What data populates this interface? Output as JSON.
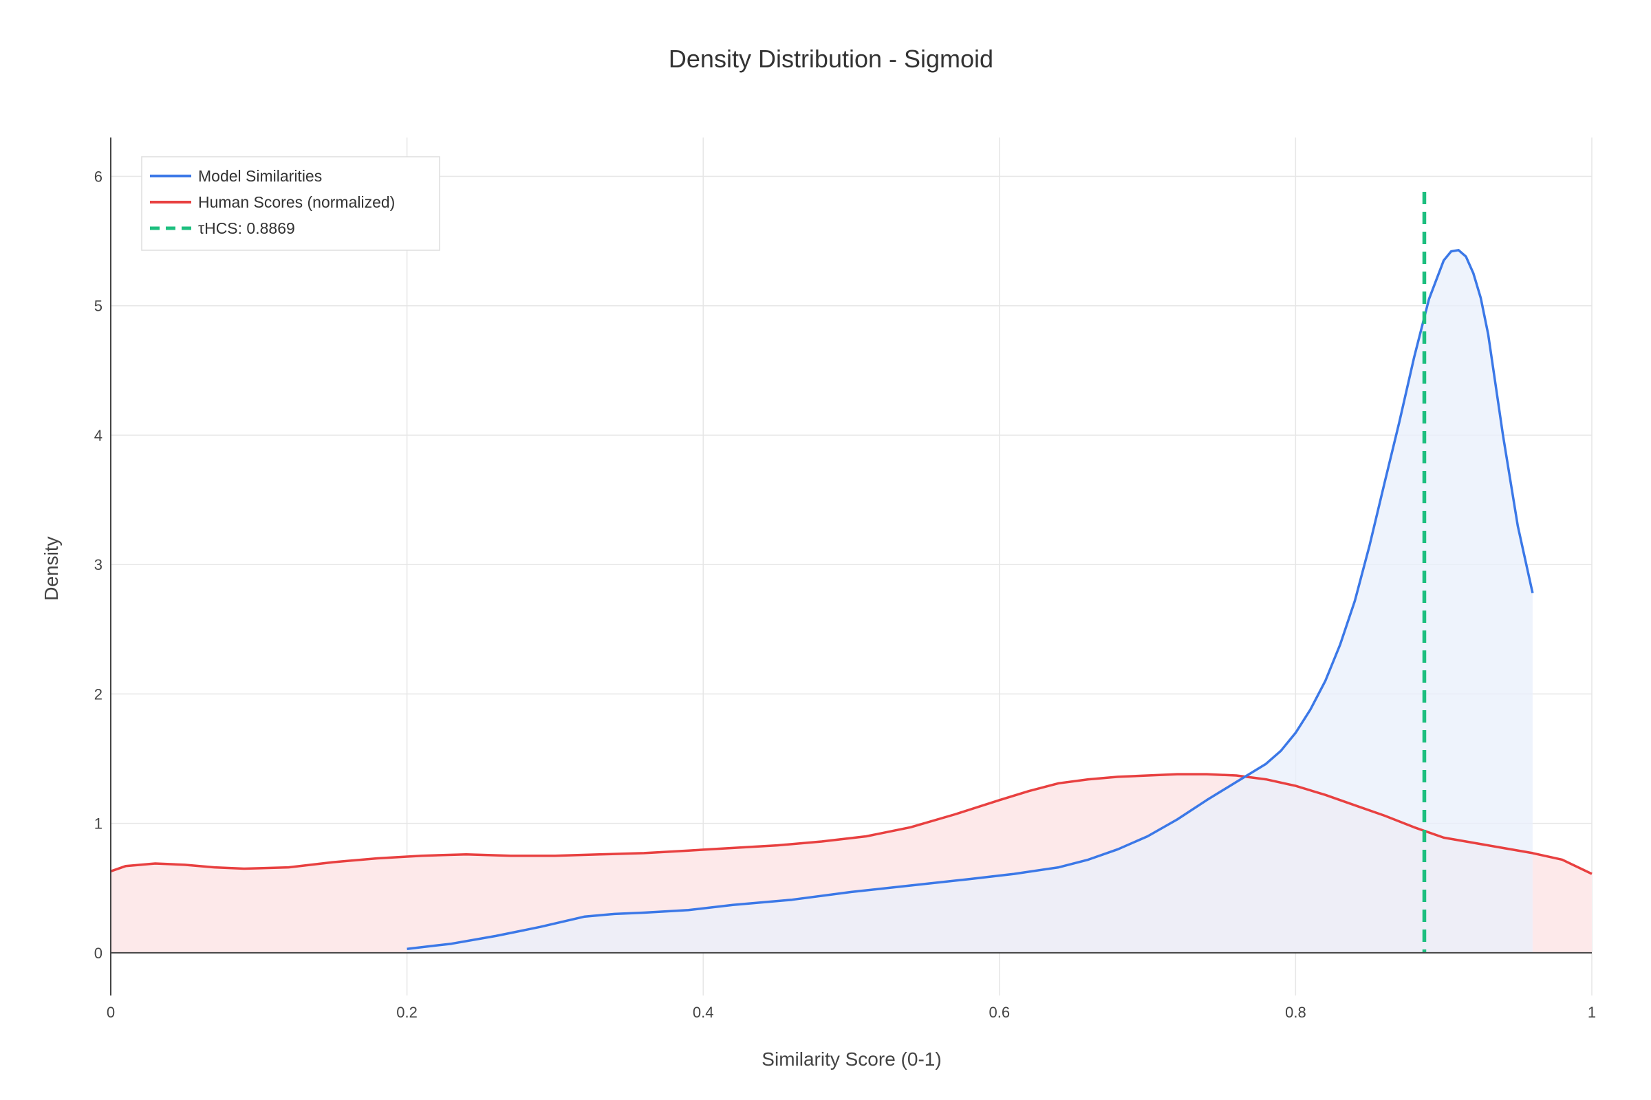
{
  "chart_data": {
    "type": "area",
    "title": "Density Distribution - Sigmoid",
    "xlabel": "Similarity Score (0-1)",
    "ylabel": "Density",
    "xlim": [
      0,
      1
    ],
    "ylim": [
      -0.33,
      6.3
    ],
    "x_ticks": [
      0,
      0.2,
      0.4,
      0.6,
      0.8,
      1
    ],
    "x_tick_labels": [
      "0",
      "0.2",
      "0.4",
      "0.6",
      "0.8",
      "1"
    ],
    "y_ticks": [
      0,
      1,
      2,
      3,
      4,
      5,
      6
    ],
    "y_tick_labels": [
      "0",
      "1",
      "2",
      "3",
      "4",
      "5",
      "6"
    ],
    "grid": true,
    "legend_position": "top-left",
    "series": [
      {
        "name": "Model Similarities",
        "color": "#3b78e7",
        "fill": "#e8effb",
        "x": [
          0.2,
          0.23,
          0.26,
          0.29,
          0.32,
          0.34,
          0.36,
          0.39,
          0.42,
          0.46,
          0.5,
          0.54,
          0.58,
          0.61,
          0.64,
          0.66,
          0.68,
          0.7,
          0.72,
          0.74,
          0.76,
          0.78,
          0.79,
          0.8,
          0.81,
          0.82,
          0.83,
          0.84,
          0.85,
          0.86,
          0.87,
          0.88,
          0.89,
          0.895,
          0.9,
          0.905,
          0.91,
          0.915,
          0.92,
          0.925,
          0.93,
          0.94,
          0.95,
          0.96
        ],
        "y": [
          0.03,
          0.07,
          0.13,
          0.2,
          0.28,
          0.3,
          0.31,
          0.33,
          0.37,
          0.41,
          0.47,
          0.52,
          0.57,
          0.61,
          0.66,
          0.72,
          0.8,
          0.9,
          1.03,
          1.18,
          1.32,
          1.46,
          1.56,
          1.7,
          1.88,
          2.1,
          2.38,
          2.72,
          3.15,
          3.63,
          4.1,
          4.6,
          5.05,
          5.2,
          5.35,
          5.42,
          5.43,
          5.38,
          5.25,
          5.06,
          4.78,
          4.0,
          3.3,
          2.78
        ]
      },
      {
        "name": "Human Scores (normalized)",
        "color": "#e84040",
        "fill": "#fde9ea",
        "x": [
          0,
          0.01,
          0.03,
          0.05,
          0.07,
          0.09,
          0.12,
          0.15,
          0.18,
          0.21,
          0.24,
          0.27,
          0.3,
          0.33,
          0.36,
          0.39,
          0.42,
          0.45,
          0.48,
          0.51,
          0.54,
          0.57,
          0.6,
          0.62,
          0.64,
          0.66,
          0.68,
          0.7,
          0.72,
          0.74,
          0.76,
          0.78,
          0.8,
          0.82,
          0.84,
          0.86,
          0.88,
          0.9,
          0.92,
          0.94,
          0.96,
          0.98,
          1.0
        ],
        "y": [
          0.63,
          0.67,
          0.69,
          0.68,
          0.66,
          0.65,
          0.66,
          0.7,
          0.73,
          0.75,
          0.76,
          0.75,
          0.75,
          0.76,
          0.77,
          0.79,
          0.81,
          0.83,
          0.86,
          0.9,
          0.97,
          1.07,
          1.18,
          1.25,
          1.31,
          1.34,
          1.36,
          1.37,
          1.38,
          1.38,
          1.37,
          1.34,
          1.29,
          1.22,
          1.14,
          1.06,
          0.97,
          0.89,
          0.85,
          0.81,
          0.77,
          0.72,
          0.61
        ]
      }
    ],
    "threshold": {
      "name": "τHCS: 0.8869",
      "x": 0.8869,
      "y_top": 5.88,
      "color": "#1dbf7f",
      "style": "dashed"
    }
  }
}
